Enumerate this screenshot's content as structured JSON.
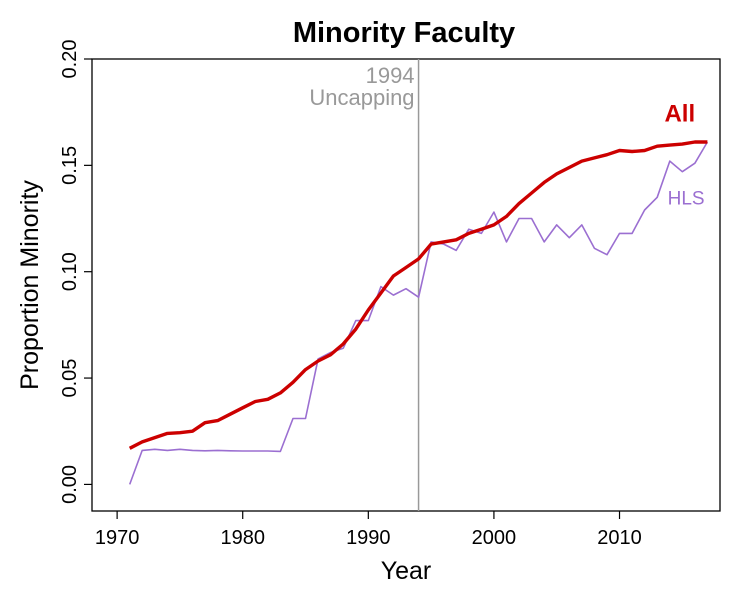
{
  "chart_data": {
    "type": "line",
    "title": "Minority Faculty",
    "xlabel": "Year",
    "ylabel": "Proportion Minority",
    "xlim": [
      1968,
      2018
    ],
    "ylim": [
      -0.0125,
      0.2
    ],
    "xticks": [
      1970,
      1980,
      1990,
      2000,
      2010
    ],
    "xtick_labels": [
      "1970",
      "1980",
      "1990",
      "2000",
      "2010"
    ],
    "yticks": [
      0.0,
      0.05,
      0.1,
      0.15,
      0.2
    ],
    "ytick_labels": [
      "0.00",
      "0.05",
      "0.10",
      "0.15",
      "0.20"
    ],
    "grid": false,
    "legend": "none",
    "series": [
      {
        "name": "All",
        "color": "#cc0000",
        "x": [
          1971,
          1972,
          1973,
          1974,
          1975,
          1976,
          1977,
          1978,
          1979,
          1980,
          1981,
          1982,
          1983,
          1984,
          1985,
          1986,
          1987,
          1988,
          1989,
          1990,
          1991,
          1992,
          1993,
          1994,
          1995,
          1996,
          1997,
          1998,
          1999,
          2000,
          2001,
          2002,
          2003,
          2004,
          2005,
          2006,
          2007,
          2008,
          2009,
          2010,
          2011,
          2012,
          2013,
          2014,
          2015,
          2016,
          2017
        ],
        "values": [
          0.017,
          0.02,
          0.022,
          0.024,
          0.0243,
          0.025,
          0.029,
          0.03,
          0.033,
          0.036,
          0.039,
          0.04,
          0.043,
          0.048,
          0.054,
          0.058,
          0.061,
          0.066,
          0.073,
          0.082,
          0.09,
          0.098,
          0.102,
          0.106,
          0.113,
          0.114,
          0.115,
          0.118,
          0.12,
          0.122,
          0.126,
          0.132,
          0.137,
          0.142,
          0.146,
          0.149,
          0.152,
          0.1535,
          0.155,
          0.157,
          0.1565,
          0.157,
          0.159,
          0.1595,
          0.16,
          0.161,
          0.161
        ]
      },
      {
        "name": "HLS",
        "color": "#9b6fd1",
        "x": [
          1971,
          1972,
          1973,
          1974,
          1975,
          1976,
          1977,
          1978,
          1979,
          1980,
          1981,
          1982,
          1983,
          1984,
          1985,
          1986,
          1987,
          1988,
          1989,
          1990,
          1991,
          1992,
          1993,
          1994,
          1995,
          1996,
          1997,
          1998,
          1999,
          2000,
          2001,
          2002,
          2003,
          2004,
          2005,
          2006,
          2007,
          2008,
          2009,
          2010,
          2011,
          2012,
          2013,
          2014,
          2015,
          2016,
          2017
        ],
        "values": [
          0.0,
          0.016,
          0.0165,
          0.016,
          0.0165,
          0.016,
          0.0158,
          0.016,
          0.0158,
          0.0157,
          0.0157,
          0.0157,
          0.0155,
          0.031,
          0.031,
          0.059,
          0.062,
          0.064,
          0.077,
          0.077,
          0.093,
          0.089,
          0.092,
          0.088,
          0.114,
          0.113,
          0.11,
          0.12,
          0.118,
          0.128,
          0.114,
          0.125,
          0.125,
          0.114,
          0.122,
          0.116,
          0.122,
          0.111,
          0.108,
          0.118,
          0.118,
          0.129,
          0.135,
          0.152,
          0.147,
          0.151,
          0.161
        ]
      }
    ],
    "annotations": {
      "vline_x": 1994,
      "vline_color": "#999999",
      "vline_label_line1": "1994",
      "vline_label_line2": "Uncapping",
      "label_all": "All",
      "label_hls": "HLS"
    }
  }
}
